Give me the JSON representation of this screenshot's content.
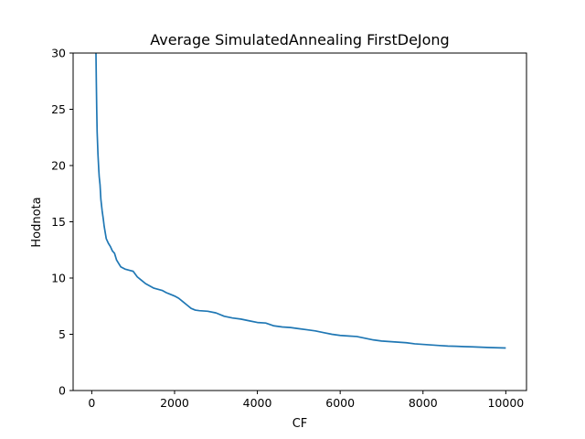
{
  "chart_data": {
    "type": "line",
    "title": "Average SimulatedAnnealing FirstDeJong",
    "xlabel": "CF",
    "ylabel": "Hodnota",
    "xlim": [
      -450,
      10500
    ],
    "ylim": [
      0,
      30
    ],
    "xticks": [
      0,
      2000,
      4000,
      6000,
      8000,
      10000
    ],
    "yticks": [
      0,
      5,
      10,
      15,
      20,
      25,
      30
    ],
    "grid": false,
    "line_color": "#1f77b4",
    "series": [
      {
        "x": [
          100,
          110,
          120,
          130,
          140,
          150,
          160,
          170,
          180,
          200,
          220,
          250,
          280,
          300,
          350,
          400,
          450,
          500,
          550,
          600,
          650,
          700,
          800,
          900,
          1000,
          1100,
          1200,
          1300,
          1400,
          1500,
          1600,
          1700,
          1800,
          1900,
          2000,
          2100,
          2200,
          2300,
          2400,
          2500,
          2600,
          2800,
          3000,
          3200,
          3400,
          3600,
          3800,
          4000,
          4200,
          4400,
          4600,
          4800,
          5000,
          5200,
          5400,
          5600,
          5800,
          6000,
          6200,
          6400,
          6600,
          6800,
          7000,
          7200,
          7400,
          7600,
          7800,
          8000,
          8200,
          8400,
          8600,
          8800,
          9000,
          9200,
          9400,
          9600,
          9800,
          10000
        ],
        "y": [
          30.5,
          27.5,
          25.0,
          23.0,
          22.0,
          21.0,
          20.3,
          19.6,
          19.0,
          18.3,
          17.0,
          16.0,
          15.2,
          14.6,
          13.5,
          13.1,
          12.8,
          12.4,
          12.2,
          11.6,
          11.3,
          11.0,
          10.8,
          10.7,
          10.6,
          10.1,
          9.8,
          9.5,
          9.3,
          9.1,
          9.0,
          8.9,
          8.7,
          8.55,
          8.4,
          8.2,
          7.9,
          7.6,
          7.3,
          7.15,
          7.1,
          7.05,
          6.9,
          6.6,
          6.45,
          6.35,
          6.2,
          6.05,
          6.0,
          5.75,
          5.65,
          5.6,
          5.5,
          5.4,
          5.3,
          5.15,
          5.0,
          4.9,
          4.85,
          4.8,
          4.65,
          4.5,
          4.4,
          4.35,
          4.3,
          4.25,
          4.15,
          4.1,
          4.05,
          4.0,
          3.95,
          3.93,
          3.9,
          3.88,
          3.85,
          3.82,
          3.8,
          3.78
        ]
      }
    ]
  }
}
